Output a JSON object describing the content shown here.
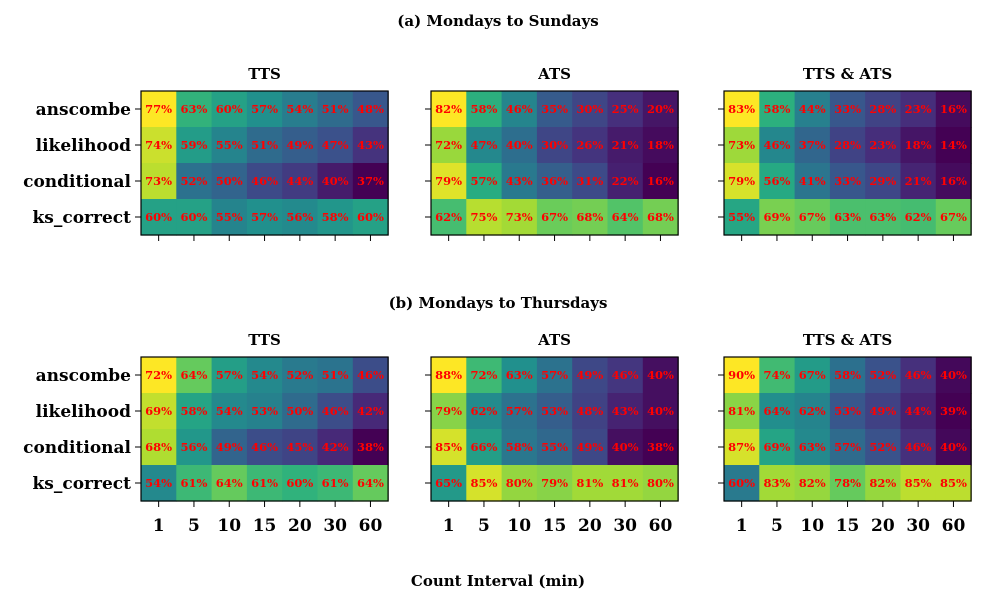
{
  "figure": {
    "xlabel": "Count Interval (min)",
    "colormap": [
      "#440154",
      "#472c7a",
      "#3b518b",
      "#2c718e",
      "#21908d",
      "#27ad81",
      "#5cc863",
      "#aadc32",
      "#fde725"
    ],
    "cell_text_color": "#ff0000"
  },
  "chart_data": [
    {
      "type": "heatmap",
      "section": "(a) Mondays to Sundays",
      "title": "TTS",
      "rows": [
        "anscombe",
        "likelihood",
        "conditional",
        "ks_correct"
      ],
      "columns": [
        "1",
        "5",
        "10",
        "15",
        "20",
        "30",
        "60"
      ],
      "values": [
        [
          77,
          63,
          60,
          57,
          54,
          51,
          48
        ],
        [
          74,
          59,
          55,
          51,
          49,
          47,
          43
        ],
        [
          73,
          52,
          50,
          46,
          44,
          40,
          37
        ],
        [
          60,
          60,
          55,
          57,
          56,
          58,
          60
        ]
      ],
      "labels": [
        [
          "77%",
          "63%",
          "60%",
          "57%",
          "54%",
          "51%",
          "48%"
        ],
        [
          "74%",
          "59%",
          "55%",
          "51%",
          "49%",
          "47%",
          "43%"
        ],
        [
          "73%",
          "52%",
          "50%",
          "46%",
          "44%",
          "40%",
          "37%"
        ],
        [
          "60%",
          "60%",
          "55%",
          "57%",
          "56%",
          "58%",
          "60%"
        ]
      ],
      "range": [
        37,
        77
      ]
    },
    {
      "type": "heatmap",
      "section": "(a) Mondays to Sundays",
      "title": "ATS",
      "rows": [
        "anscombe",
        "likelihood",
        "conditional",
        "ks_correct"
      ],
      "columns": [
        "1",
        "5",
        "10",
        "15",
        "20",
        "30",
        "60"
      ],
      "values": [
        [
          82,
          58,
          46,
          35,
          30,
          25,
          20
        ],
        [
          72,
          47,
          40,
          30,
          26,
          21,
          18
        ],
        [
          79,
          57,
          43,
          36,
          31,
          22,
          16
        ],
        [
          62,
          75,
          73,
          67,
          68,
          64,
          68
        ]
      ],
      "labels": [
        [
          "82%",
          "58%",
          "46%",
          "35%",
          "30%",
          "25%",
          "20%"
        ],
        [
          "72%",
          "47%",
          "40%",
          "30%",
          "26%",
          "21%",
          "18%"
        ],
        [
          "79%",
          "57%",
          "43%",
          "36%",
          "31%",
          "22%",
          "16%"
        ],
        [
          "62%",
          "75%",
          "73%",
          "67%",
          "68%",
          "64%",
          "68%"
        ]
      ],
      "range": [
        16,
        82
      ]
    },
    {
      "type": "heatmap",
      "section": "(a) Mondays to Sundays",
      "title": "TTS & ATS",
      "rows": [
        "anscombe",
        "likelihood",
        "conditional",
        "ks_correct"
      ],
      "columns": [
        "1",
        "5",
        "10",
        "15",
        "20",
        "30",
        "60"
      ],
      "values": [
        [
          83,
          58,
          44,
          33,
          28,
          23,
          16
        ],
        [
          73,
          46,
          37,
          28,
          23,
          18,
          14
        ],
        [
          79,
          56,
          41,
          33,
          29,
          21,
          16
        ],
        [
          55,
          69,
          67,
          63,
          63,
          62,
          67
        ]
      ],
      "labels": [
        [
          "83%",
          "58%",
          "44%",
          "33%",
          "28%",
          "23%",
          "16%"
        ],
        [
          "73%",
          "46%",
          "37%",
          "28%",
          "23%",
          "18%",
          "14%"
        ],
        [
          "79%",
          "56%",
          "41%",
          "33%",
          "29%",
          "21%",
          "16%"
        ],
        [
          "55%",
          "69%",
          "67%",
          "63%",
          "63%",
          "62%",
          "67%"
        ]
      ],
      "range": [
        14,
        83
      ]
    },
    {
      "type": "heatmap",
      "section": "(b) Mondays to Thursdays",
      "title": "TTS",
      "rows": [
        "anscombe",
        "likelihood",
        "conditional",
        "ks_correct"
      ],
      "columns": [
        "1",
        "5",
        "10",
        "15",
        "20",
        "30",
        "60"
      ],
      "values": [
        [
          72,
          64,
          57,
          54,
          52,
          51,
          46
        ],
        [
          69,
          58,
          54,
          53,
          50,
          46,
          42
        ],
        [
          68,
          56,
          49,
          46,
          45,
          42,
          38
        ],
        [
          54,
          61,
          64,
          61,
          60,
          61,
          64
        ]
      ],
      "labels": [
        [
          "72%",
          "64%",
          "57%",
          "54%",
          "52%",
          "51%",
          "46%"
        ],
        [
          "69%",
          "58%",
          "54%",
          "53%",
          "50%",
          "46%",
          "42%"
        ],
        [
          "68%",
          "56%",
          "49%",
          "46%",
          "45%",
          "42%",
          "38%"
        ],
        [
          "54%",
          "61%",
          "64%",
          "61%",
          "60%",
          "61%",
          "64%"
        ]
      ],
      "range": [
        38,
        72
      ]
    },
    {
      "type": "heatmap",
      "section": "(b) Mondays to Thursdays",
      "title": "ATS",
      "rows": [
        "anscombe",
        "likelihood",
        "conditional",
        "ks_correct"
      ],
      "columns": [
        "1",
        "5",
        "10",
        "15",
        "20",
        "30",
        "60"
      ],
      "values": [
        [
          88,
          72,
          63,
          57,
          49,
          46,
          40
        ],
        [
          79,
          62,
          57,
          53,
          48,
          43,
          40
        ],
        [
          85,
          66,
          58,
          55,
          49,
          40,
          38
        ],
        [
          65,
          85,
          80,
          79,
          81,
          81,
          80
        ]
      ],
      "labels": [
        [
          "88%",
          "72%",
          "63%",
          "57%",
          "49%",
          "46%",
          "40%"
        ],
        [
          "79%",
          "62%",
          "57%",
          "53%",
          "48%",
          "43%",
          "40%"
        ],
        [
          "85%",
          "66%",
          "58%",
          "55%",
          "49%",
          "40%",
          "38%"
        ],
        [
          "65%",
          "85%",
          "80%",
          "79%",
          "81%",
          "81%",
          "80%"
        ]
      ],
      "range": [
        38,
        88
      ]
    },
    {
      "type": "heatmap",
      "section": "(b) Mondays to Thursdays",
      "title": "TTS & ATS",
      "rows": [
        "anscombe",
        "likelihood",
        "conditional",
        "ks_correct"
      ],
      "columns": [
        "1",
        "5",
        "10",
        "15",
        "20",
        "30",
        "60"
      ],
      "values": [
        [
          90,
          74,
          67,
          58,
          52,
          46,
          40
        ],
        [
          81,
          64,
          62,
          53,
          49,
          44,
          39
        ],
        [
          87,
          69,
          63,
          57,
          52,
          46,
          40
        ],
        [
          60,
          83,
          82,
          78,
          82,
          85,
          85
        ]
      ],
      "labels": [
        [
          "90%",
          "74%",
          "67%",
          "58%",
          "52%",
          "46%",
          "40%"
        ],
        [
          "81%",
          "64%",
          "62%",
          "53%",
          "49%",
          "44%",
          "39%"
        ],
        [
          "87%",
          "69%",
          "63%",
          "57%",
          "52%",
          "46%",
          "40%"
        ],
        [
          "60%",
          "83%",
          "82%",
          "78%",
          "82%",
          "85%",
          "85%"
        ]
      ],
      "range": [
        39,
        90
      ]
    }
  ]
}
